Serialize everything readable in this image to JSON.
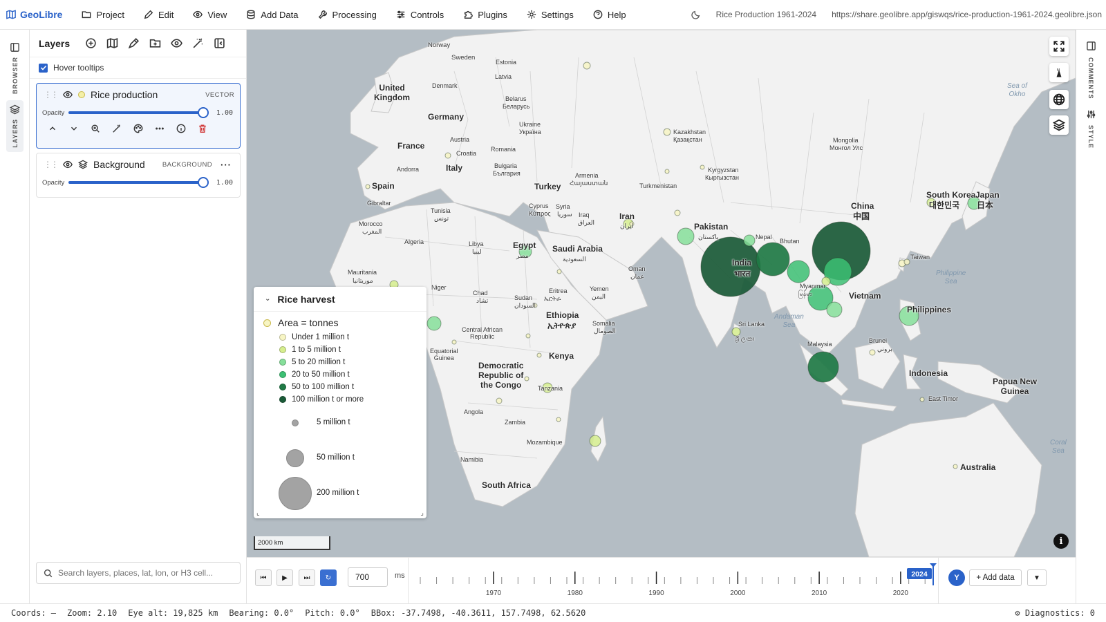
{
  "app": {
    "name": "GeoLibre",
    "menu": [
      "Project",
      "Edit",
      "View",
      "Add Data",
      "Processing",
      "Controls",
      "Plugins",
      "Settings",
      "Help"
    ],
    "project_title": "Rice Production 1961-2024",
    "share_url": "https://share.geolibre.app/giswqs/rice-production-1961-2024.geolibre.json"
  },
  "left_rail": {
    "browser": "BROWSER",
    "layers": "LAYERS"
  },
  "right_rail": {
    "comments": "COMMENTS",
    "style": "STYLE"
  },
  "layers_panel": {
    "title": "Layers",
    "hover_tooltips": "Hover tooltips",
    "layers": [
      {
        "name": "Rice production",
        "type": "VECTOR",
        "opacity_label": "Opacity",
        "opacity": "1.00",
        "swatch": "#f4f0a8"
      },
      {
        "name": "Background",
        "type": "BACKGROUND",
        "opacity_label": "Opacity",
        "opacity": "1.00"
      }
    ],
    "search_placeholder": "Search layers, places, lat, lon, or H3 cell..."
  },
  "legend": {
    "title": "Rice harvest",
    "subtitle": "Area = tonnes",
    "classes": [
      {
        "label": "Under 1 million t",
        "color": "#f7f5c4"
      },
      {
        "label": "1 to 5 million t",
        "color": "#d6ee8e"
      },
      {
        "label": "5 to 20 million t",
        "color": "#86df9a"
      },
      {
        "label": "20 to 50 million t",
        "color": "#3cc073"
      },
      {
        "label": "50 to 100 million t",
        "color": "#1f7a45"
      },
      {
        "label": "100 million t or more",
        "color": "#1a5a37"
      }
    ],
    "sizes": [
      "5 million t",
      "50 million t",
      "200 million t"
    ]
  },
  "map_labels": [
    "Norway",
    "Sweden",
    "Estonia",
    "Latvia",
    "Denmark",
    "United Kingdom",
    "Belarus",
    "Беларусь",
    "Germany",
    "Ukraine",
    "Україна",
    "France",
    "Austria",
    "Croatia",
    "Romania",
    "Andorra",
    "Italy",
    "Bulgaria",
    "България",
    "Spain",
    "Gibraltar",
    "Turkey",
    "Armenia",
    "Հայաստան",
    "Cyprus",
    "Κύπρος",
    "Syria",
    "سوريا",
    "Iraq",
    "العراق",
    "Iran",
    "ایران",
    "Kazakhstan",
    "Қазақстан",
    "Mongolia",
    "Монгол Улс",
    "Kyrgyzstan",
    "Кыргызстан",
    "Turkmenistan",
    "Pakistan",
    "پاکستان",
    "Nepal",
    "Bhutan",
    "China",
    "中国",
    "South Korea",
    "대한민국",
    "Japan",
    "日本",
    "Taiwan",
    "India",
    "भारत",
    "Myanmar",
    "မြန်မာ",
    "Vietnam",
    "Philippines",
    "Sri Lanka",
    "ශ්‍රී ලංකා",
    "Malaysia",
    "Brunei",
    "بروني",
    "Indonesia",
    "Papua New Guinea",
    "East Timor",
    "Australia",
    "Tunisia",
    "تونس",
    "Morocco",
    "المغرب",
    "Algeria",
    "Libya",
    "ليبيا",
    "Egypt",
    "مصر",
    "Saudi Arabia",
    "السعودية",
    "Oman",
    "عمان",
    "Yemen",
    "اليمن",
    "Eritrea",
    "ኤርትራ",
    "Sudan",
    "السودان",
    "Ethiopia",
    "ኢትዮጵያ",
    "Somalia",
    "الصومال",
    "Chad",
    "تشاد",
    "Niger",
    "Mauritania",
    "موريتانيا",
    "Central African Republic",
    "Equatorial Guinea",
    "Democratic Republic of the Congo",
    "Kenya",
    "Tanzania",
    "Angola",
    "Zambia",
    "Mozambique",
    "Namibia",
    "South Africa",
    "Sea of Okhotsk",
    "Philippine Sea",
    "Andaman Sea",
    "Coral Sea"
  ],
  "scale_bar": "2000 km",
  "timeline": {
    "interval": "700",
    "unit": "ms",
    "current_year": "2024",
    "year_min": 1961,
    "year_max": 2024,
    "tick_labels": [
      "1970",
      "1980",
      "1990",
      "2000",
      "2010",
      "2020"
    ],
    "user_badge": "Y",
    "add_data": "+ Add data"
  },
  "status": {
    "coords": "Coords: —",
    "zoom": "Zoom: 2.10",
    "eye_alt": "Eye alt: 19,825 km",
    "bearing": "Bearing: 0.0°",
    "pitch": "Pitch: 0.0°",
    "bbox": "BBox: -37.7498, -40.3611, 157.7498, 62.5620",
    "diagnostics": "Diagnostics: 0"
  }
}
